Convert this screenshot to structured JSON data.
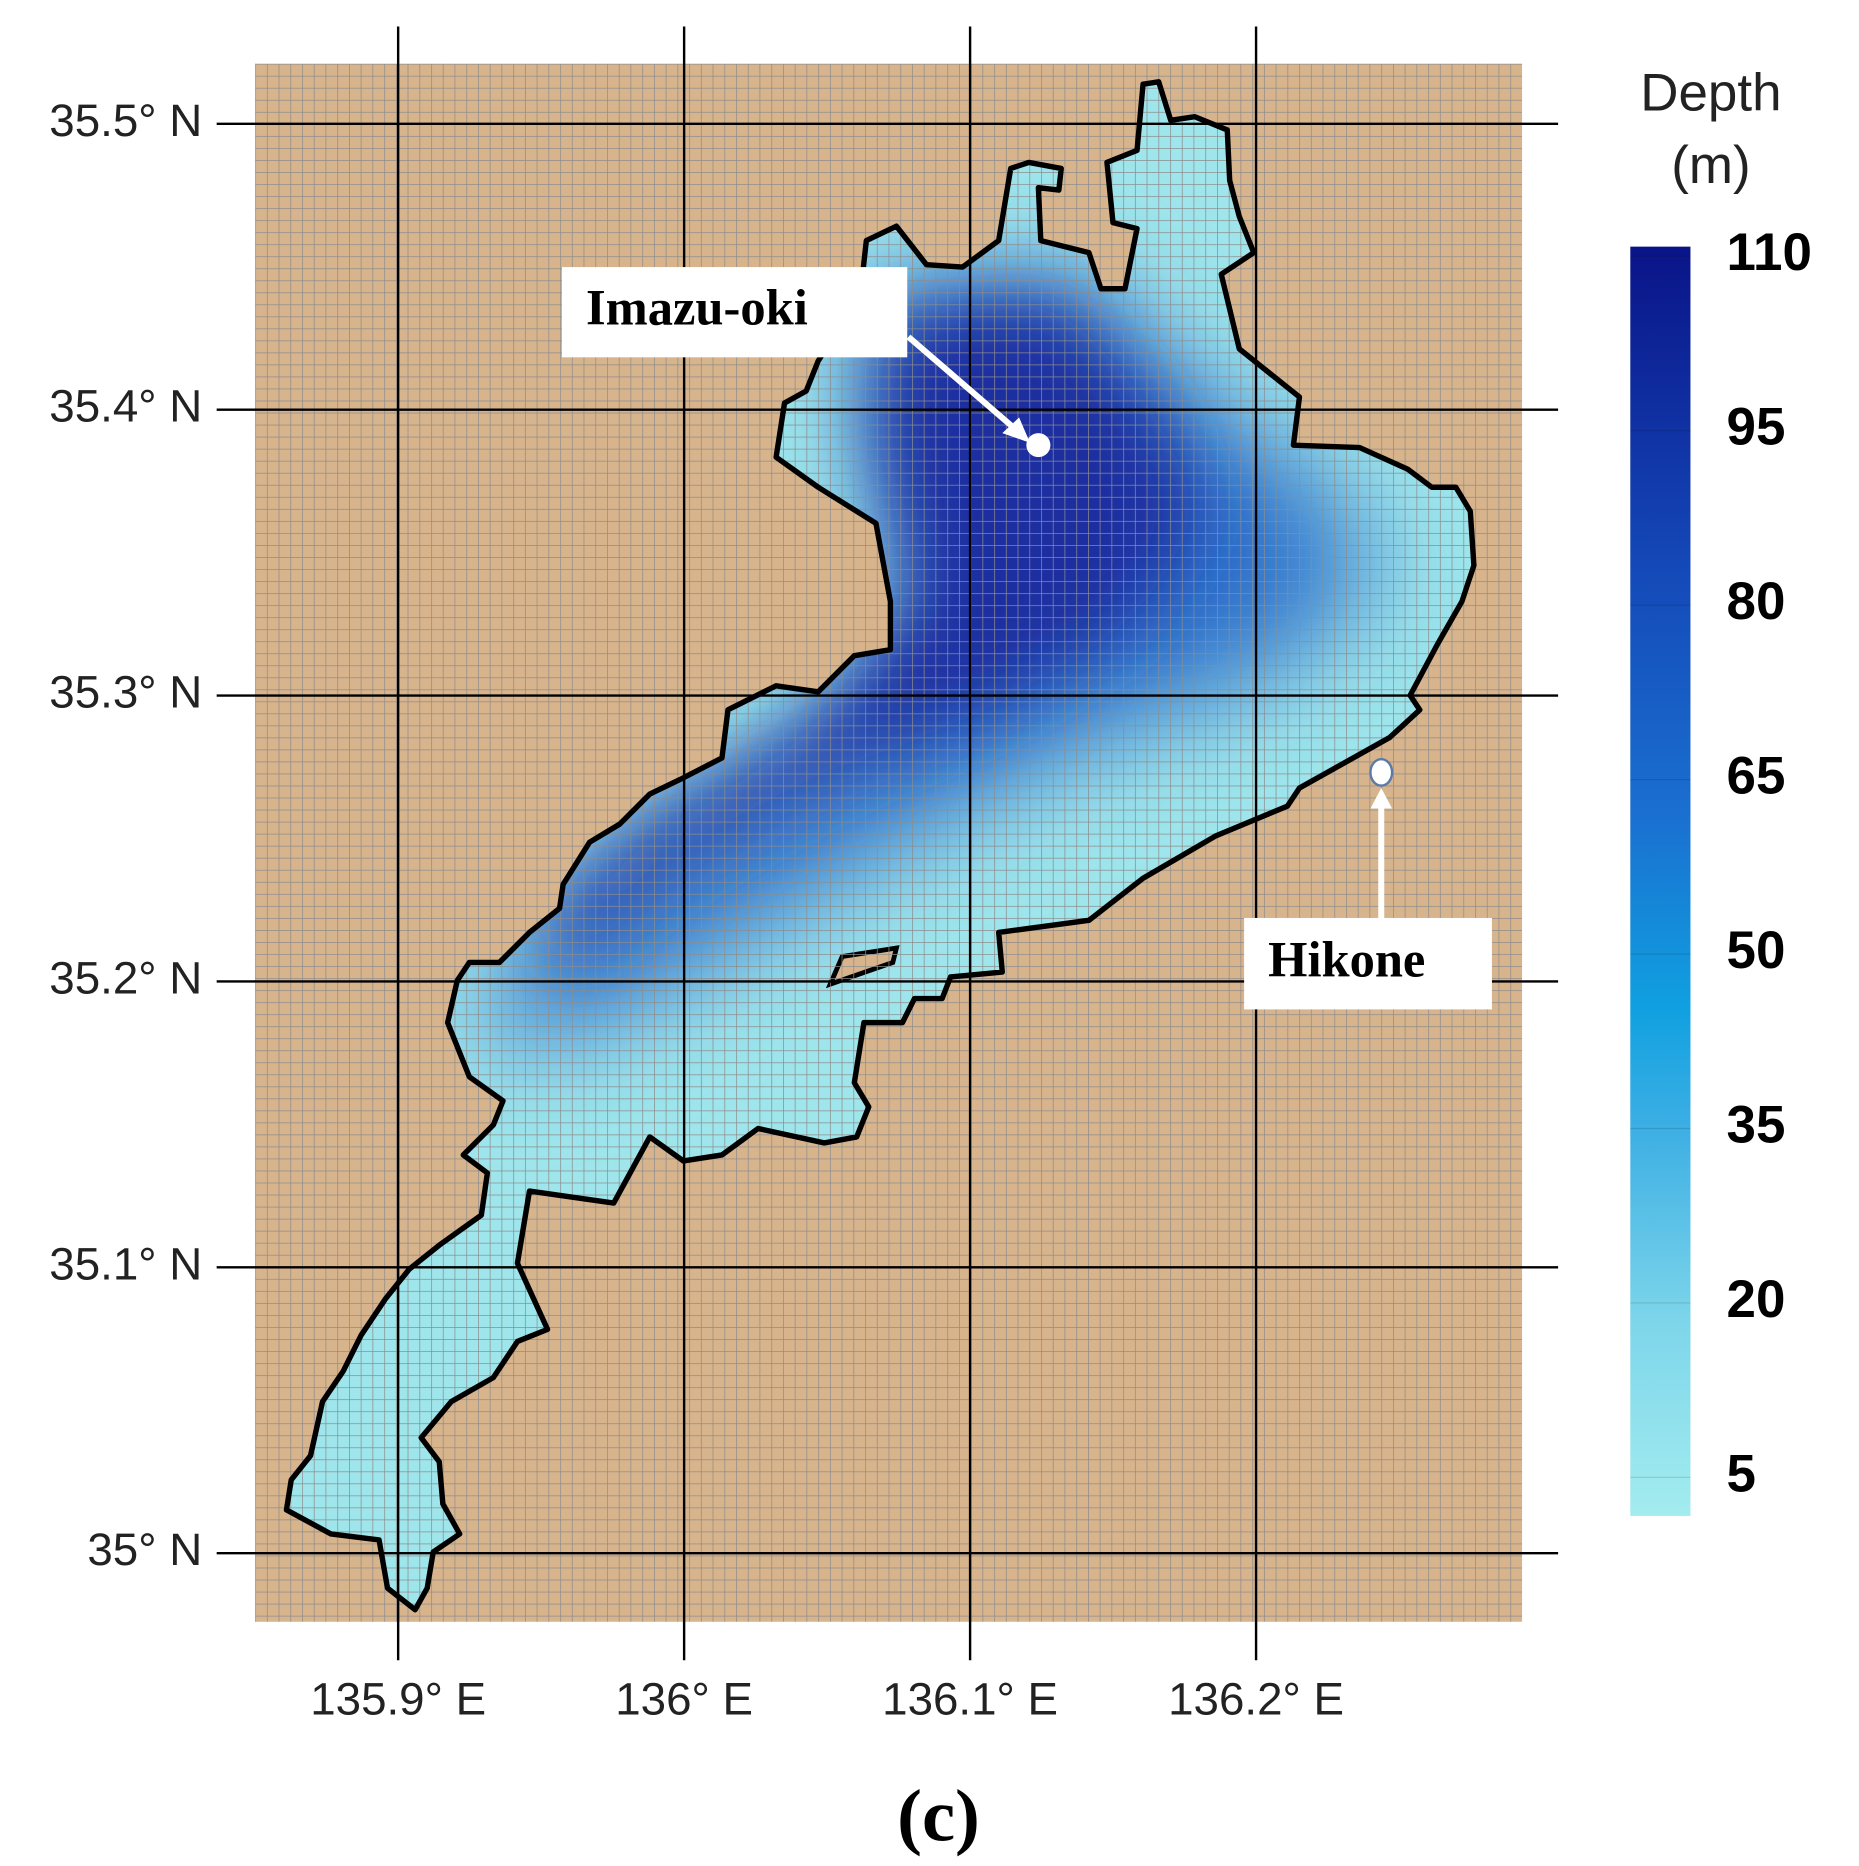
{
  "map": {
    "xlim": [
      135.85,
      136.293
    ],
    "ylim": [
      34.976,
      35.521
    ],
    "xticks": [
      {
        "value": 135.9,
        "label": "135.9° E"
      },
      {
        "value": 136,
        "label": "136° E"
      },
      {
        "value": 136.1,
        "label": "136.1° E"
      },
      {
        "value": 136.2,
        "label": "136.2° E"
      }
    ],
    "yticks": [
      {
        "value": 35,
        "label": "35° N"
      },
      {
        "value": 35.1,
        "label": "35.1° N"
      },
      {
        "value": 35.2,
        "label": "35.2° N"
      },
      {
        "value": 35.3,
        "label": "35.3° N"
      },
      {
        "value": 35.4,
        "label": "35.4° N"
      },
      {
        "value": 35.5,
        "label": "35.5° N"
      }
    ],
    "annotations": [
      "Imazu-oki",
      "Hikone"
    ]
  },
  "colorbar": {
    "title": [
      "Depth",
      "(m)"
    ],
    "ticks": [
      5,
      20,
      35,
      50,
      65,
      80,
      95,
      110
    ]
  },
  "caption": "(c)"
}
